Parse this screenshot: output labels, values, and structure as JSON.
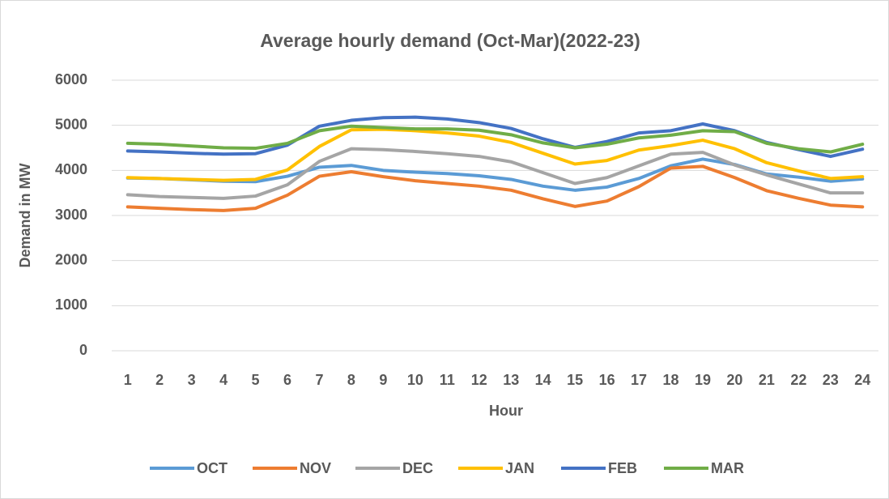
{
  "chart_data": {
    "type": "line",
    "title": "Average hourly demand (Oct-Mar)(2022-23)",
    "x_label": "Hour",
    "y_label": "Demand in MW",
    "categories": [
      1,
      2,
      3,
      4,
      5,
      6,
      7,
      8,
      9,
      10,
      11,
      12,
      13,
      14,
      15,
      16,
      17,
      18,
      19,
      20,
      21,
      22,
      23,
      24
    ],
    "series": [
      {
        "name": "OCT",
        "color": "#5b9bd5",
        "values": [
          3830,
          3820,
          3790,
          3760,
          3750,
          3870,
          4070,
          4110,
          4000,
          3960,
          3930,
          3880,
          3800,
          3650,
          3560,
          3630,
          3820,
          4100,
          4250,
          4130,
          3920,
          3850,
          3760,
          3810
        ]
      },
      {
        "name": "NOV",
        "color": "#ed7d31",
        "values": [
          3190,
          3160,
          3130,
          3110,
          3160,
          3450,
          3870,
          3970,
          3860,
          3770,
          3710,
          3650,
          3560,
          3370,
          3200,
          3320,
          3640,
          4050,
          4090,
          3840,
          3550,
          3380,
          3230,
          3190
        ]
      },
      {
        "name": "DEC",
        "color": "#a5a5a5",
        "values": [
          3460,
          3420,
          3400,
          3380,
          3430,
          3680,
          4200,
          4480,
          4460,
          4420,
          4370,
          4310,
          4190,
          3950,
          3710,
          3840,
          4100,
          4360,
          4400,
          4120,
          3900,
          3700,
          3500,
          3500
        ]
      },
      {
        "name": "JAN",
        "color": "#ffc000",
        "values": [
          3840,
          3820,
          3800,
          3780,
          3800,
          4010,
          4530,
          4900,
          4910,
          4880,
          4830,
          4760,
          4620,
          4380,
          4140,
          4220,
          4450,
          4550,
          4670,
          4480,
          4170,
          3990,
          3820,
          3860
        ]
      },
      {
        "name": "FEB",
        "color": "#4472c4",
        "values": [
          4430,
          4410,
          4380,
          4360,
          4370,
          4560,
          4980,
          5110,
          5170,
          5180,
          5140,
          5060,
          4930,
          4700,
          4510,
          4640,
          4830,
          4880,
          5030,
          4880,
          4620,
          4460,
          4310,
          4470
        ]
      },
      {
        "name": "MAR",
        "color": "#70ad47",
        "values": [
          4600,
          4580,
          4540,
          4500,
          4490,
          4600,
          4880,
          4980,
          4950,
          4920,
          4920,
          4890,
          4790,
          4610,
          4500,
          4580,
          4720,
          4780,
          4880,
          4860,
          4600,
          4480,
          4410,
          4580
        ]
      }
    ],
    "ylim": [
      0,
      6000
    ],
    "yticks": [
      0,
      1000,
      2000,
      3000,
      4000,
      5000,
      6000
    ],
    "grid": true,
    "legend": "bottom"
  }
}
